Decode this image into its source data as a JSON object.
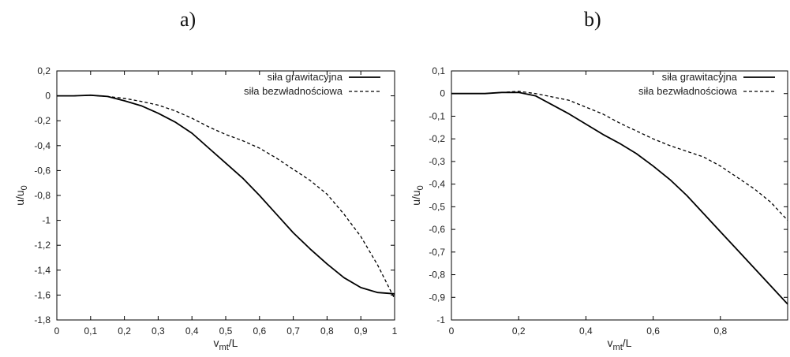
{
  "panel_labels": [
    "a)",
    "b)"
  ],
  "chart_data": [
    {
      "type": "line",
      "panel": "a)",
      "xlabel": "v_mt/L",
      "ylabel": "u/u_0",
      "xlim": [
        0,
        1
      ],
      "ylim": [
        -1.8,
        0.2
      ],
      "x_ticks": [
        0,
        0.1,
        0.2,
        0.3,
        0.4,
        0.5,
        0.6,
        0.7,
        0.8,
        0.9,
        1
      ],
      "x_tick_labels": [
        "0",
        "0,1",
        "0,2",
        "0,3",
        "0,4",
        "0,5",
        "0,6",
        "0,7",
        "0,8",
        "0,9",
        "1"
      ],
      "y_ticks": [
        0.2,
        0,
        -0.2,
        -0.4,
        -0.6,
        -0.8,
        -1,
        -1.2,
        -1.4,
        -1.6,
        -1.8
      ],
      "y_tick_labels": [
        "0,2",
        "0",
        "-0,2",
        "-0,4",
        "-0,6",
        "-0,8",
        "-1",
        "-1,2",
        "-1,4",
        "-1,6",
        "-1,8"
      ],
      "grid": false,
      "legend_position": "top-right",
      "series": [
        {
          "name": "siła grawitacyjna",
          "style": "solid",
          "x": [
            0,
            0.05,
            0.1,
            0.15,
            0.2,
            0.25,
            0.3,
            0.35,
            0.4,
            0.45,
            0.5,
            0.55,
            0.6,
            0.65,
            0.7,
            0.75,
            0.8,
            0.85,
            0.9,
            0.95,
            1
          ],
          "y": [
            0,
            0,
            0.005,
            -0.005,
            -0.04,
            -0.08,
            -0.14,
            -0.21,
            -0.3,
            -0.42,
            -0.54,
            -0.66,
            -0.8,
            -0.95,
            -1.1,
            -1.23,
            -1.35,
            -1.46,
            -1.54,
            -1.58,
            -1.59
          ]
        },
        {
          "name": "siła bezwładnościowa",
          "style": "dashed",
          "x": [
            0,
            0.05,
            0.1,
            0.15,
            0.2,
            0.25,
            0.3,
            0.35,
            0.4,
            0.45,
            0.5,
            0.55,
            0.6,
            0.65,
            0.7,
            0.75,
            0.8,
            0.85,
            0.9,
            0.95,
            1
          ],
          "y": [
            0,
            0,
            0.005,
            -0.005,
            -0.02,
            -0.045,
            -0.075,
            -0.12,
            -0.18,
            -0.25,
            -0.31,
            -0.36,
            -0.42,
            -0.5,
            -0.59,
            -0.68,
            -0.79,
            -0.95,
            -1.13,
            -1.36,
            -1.63
          ]
        }
      ]
    },
    {
      "type": "line",
      "panel": "b)",
      "xlabel": "v_mt/L",
      "ylabel": "u/u_0",
      "xlim": [
        0,
        1
      ],
      "ylim": [
        -1,
        0.1
      ],
      "x_ticks": [
        0,
        0.2,
        0.4,
        0.6,
        0.8
      ],
      "x_tick_labels": [
        "0",
        "0,2",
        "0,4",
        "0,6",
        "0,8"
      ],
      "y_ticks": [
        0.1,
        0,
        -0.1,
        -0.2,
        -0.3,
        -0.4,
        -0.5,
        -0.6,
        -0.7,
        -0.8,
        -0.9,
        -1
      ],
      "y_tick_labels": [
        "0,1",
        "0",
        "-0,1",
        "-0,2",
        "-0,3",
        "-0,4",
        "-0,5",
        "-0,6",
        "-0,7",
        "-0,8",
        "-0,9",
        "-1"
      ],
      "grid": false,
      "legend_position": "top-right",
      "series": [
        {
          "name": "siła grawitacyjna",
          "style": "solid",
          "x": [
            0,
            0.05,
            0.1,
            0.15,
            0.2,
            0.25,
            0.3,
            0.35,
            0.4,
            0.45,
            0.5,
            0.55,
            0.6,
            0.65,
            0.7,
            0.75,
            0.8,
            0.85,
            0.9,
            0.95,
            1
          ],
          "y": [
            0,
            0,
            0,
            0.005,
            0.005,
            -0.01,
            -0.05,
            -0.09,
            -0.135,
            -0.18,
            -0.22,
            -0.265,
            -0.32,
            -0.38,
            -0.45,
            -0.53,
            -0.61,
            -0.69,
            -0.77,
            -0.85,
            -0.93
          ]
        },
        {
          "name": "siła bezwładnościowa",
          "style": "dashed",
          "x": [
            0,
            0.05,
            0.1,
            0.15,
            0.2,
            0.25,
            0.3,
            0.35,
            0.4,
            0.45,
            0.5,
            0.55,
            0.6,
            0.65,
            0.7,
            0.75,
            0.8,
            0.85,
            0.9,
            0.95,
            1
          ],
          "y": [
            0,
            0,
            0,
            0.005,
            0.01,
            0,
            -0.015,
            -0.03,
            -0.06,
            -0.09,
            -0.13,
            -0.165,
            -0.2,
            -0.23,
            -0.255,
            -0.28,
            -0.32,
            -0.37,
            -0.42,
            -0.48,
            -0.56
          ]
        }
      ]
    }
  ]
}
